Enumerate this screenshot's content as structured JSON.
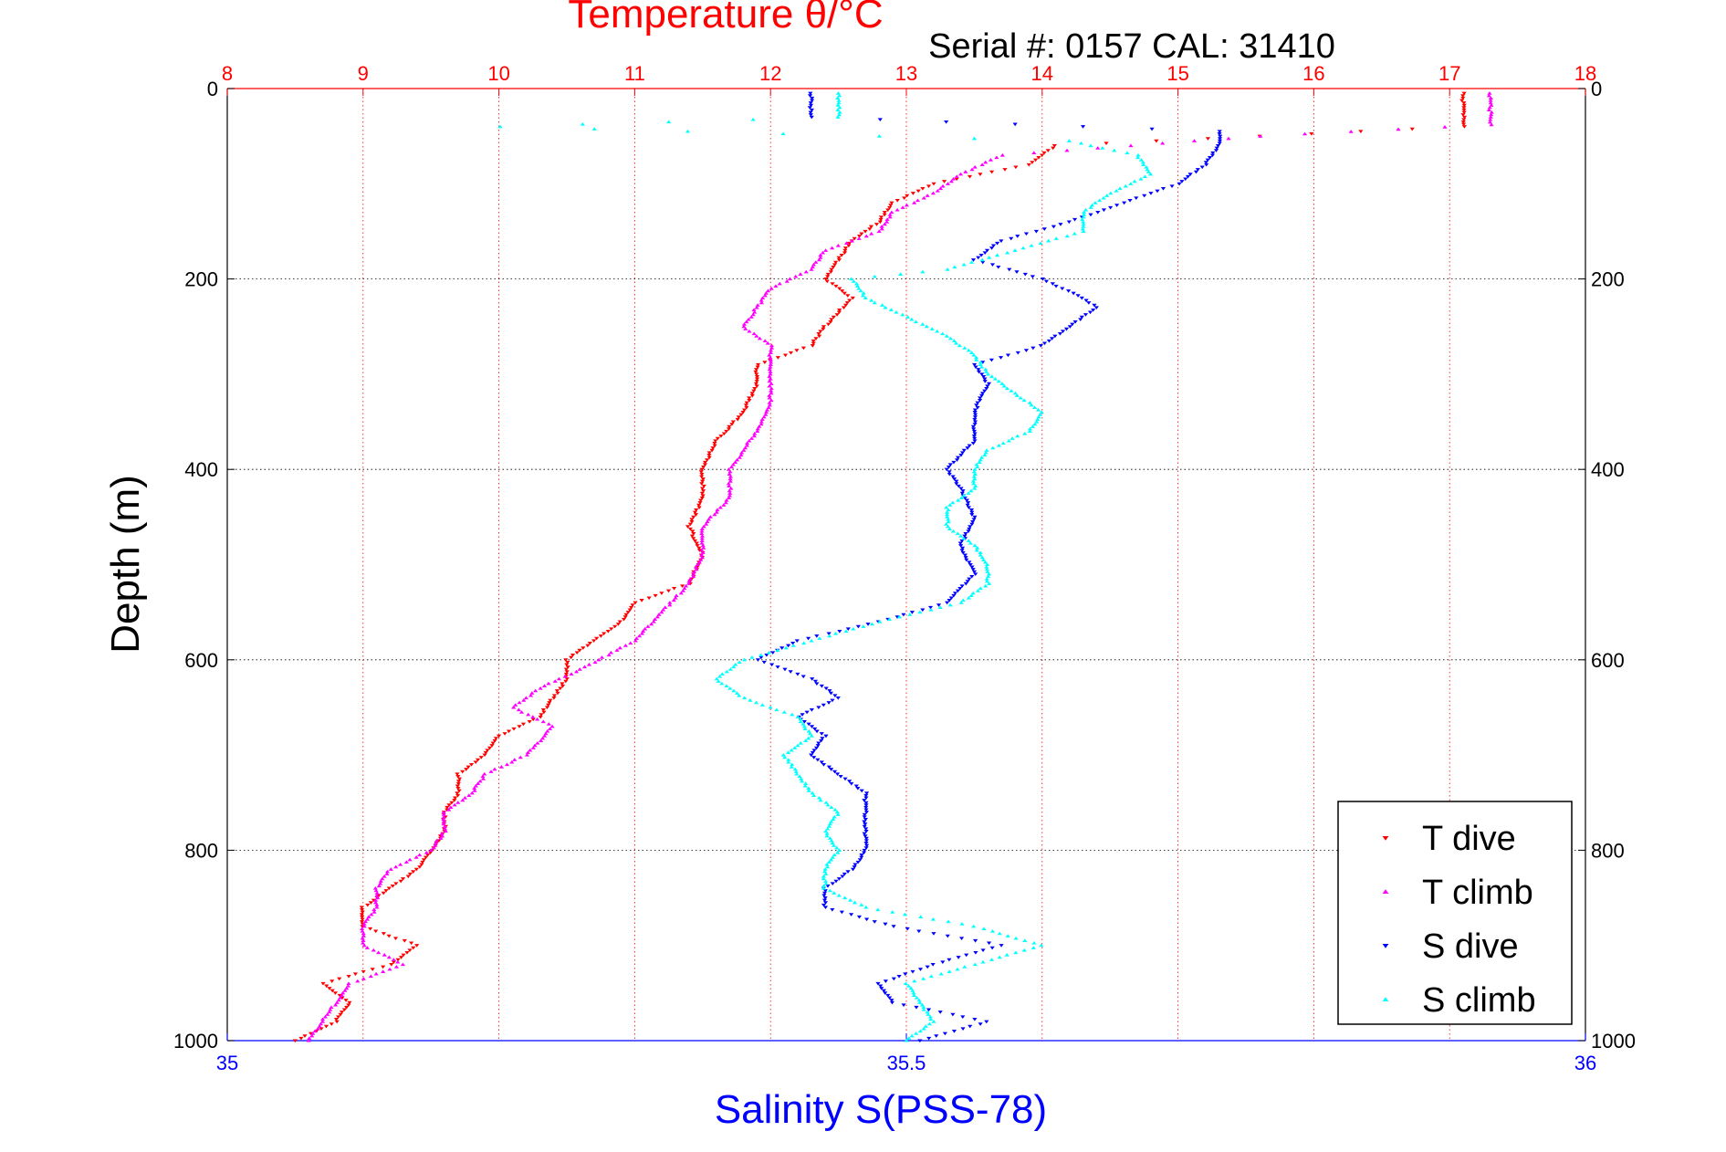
{
  "header": {
    "title": "Temperature θ/°C",
    "serial": "Serial #: 0157  CAL: 31410"
  },
  "colors": {
    "t_dive": "#ff0000",
    "t_climb": "#ff00ff",
    "s_dive": "#0000ff",
    "s_climb": "#00ffff",
    "temp_axis": "#ff0000",
    "sal_axis": "#0000ff"
  },
  "chart_data": {
    "type": "scatter",
    "title": "Temperature θ/°C",
    "xlabel": "Salinity S(PSS-78)",
    "ylabel": "Depth (m)",
    "grid": true,
    "legend_position": "bottom-right",
    "depth_axis": {
      "range": [
        0,
        1000
      ],
      "reversed": true,
      "ticks": [
        0,
        200,
        400,
        600,
        800,
        1000
      ]
    },
    "temperature_axis": {
      "range": [
        8,
        18
      ],
      "position": "top",
      "ticks": [
        8,
        9,
        10,
        11,
        12,
        13,
        14,
        15,
        16,
        17,
        18
      ]
    },
    "salinity_axis": {
      "range": [
        35,
        36
      ],
      "position": "bottom",
      "ticks": [
        "35",
        "35.5",
        "36"
      ],
      "tick_values": [
        35,
        35.5,
        36
      ]
    },
    "series": [
      {
        "name": "T dive",
        "axis": "temperature",
        "marker": "triangle-down",
        "color": "#ff0000",
        "depth": [
          5,
          10,
          20,
          30,
          40,
          60,
          80,
          100,
          120,
          140,
          160,
          180,
          200,
          220,
          250,
          270,
          290,
          310,
          340,
          370,
          400,
          430,
          460,
          490,
          520,
          540,
          560,
          580,
          600,
          620,
          640,
          660,
          680,
          700,
          720,
          740,
          760,
          780,
          800,
          820,
          840,
          860,
          880,
          900,
          920,
          940,
          960,
          980,
          1000
        ],
        "value": [
          17.1,
          17.1,
          17.1,
          17.1,
          17.1,
          14.1,
          13.9,
          13.2,
          12.9,
          12.8,
          12.6,
          12.5,
          12.4,
          12.6,
          12.4,
          12.3,
          11.9,
          11.9,
          11.8,
          11.6,
          11.5,
          11.5,
          11.4,
          11.5,
          11.4,
          11.0,
          10.9,
          10.7,
          10.5,
          10.5,
          10.4,
          10.3,
          10.0,
          9.9,
          9.7,
          9.7,
          9.6,
          9.6,
          9.5,
          9.4,
          9.2,
          9.0,
          9.0,
          9.4,
          9.2,
          8.7,
          8.9,
          8.8,
          8.5
        ]
      },
      {
        "name": "T climb",
        "axis": "temperature",
        "marker": "triangle-up",
        "color": "#ff00ff",
        "depth": [
          5,
          10,
          20,
          30,
          38,
          50,
          70,
          90,
          110,
          130,
          150,
          170,
          190,
          210,
          230,
          250,
          270,
          300,
          330,
          360,
          400,
          430,
          460,
          490,
          520,
          550,
          580,
          610,
          630,
          650,
          670,
          700,
          720,
          740,
          760,
          780,
          800,
          820,
          840,
          860,
          880,
          900,
          920,
          940,
          960,
          980,
          1000
        ],
        "value": [
          17.3,
          17.3,
          17.3,
          17.3,
          17.3,
          15.6,
          13.7,
          13.4,
          13.2,
          12.9,
          12.8,
          12.4,
          12.3,
          12.0,
          11.9,
          11.8,
          12.0,
          12.0,
          12.0,
          11.9,
          11.7,
          11.7,
          11.5,
          11.5,
          11.4,
          11.2,
          11.0,
          10.6,
          10.3,
          10.1,
          10.4,
          10.2,
          9.9,
          9.8,
          9.6,
          9.6,
          9.5,
          9.2,
          9.1,
          9.1,
          9.0,
          9.0,
          9.3,
          8.9,
          8.8,
          8.7,
          8.6
        ]
      },
      {
        "name": "S dive",
        "axis": "salinity",
        "marker": "triangle-down",
        "color": "#0000ff",
        "depth": [
          5,
          10,
          20,
          30,
          45,
          60,
          80,
          100,
          120,
          140,
          160,
          180,
          200,
          220,
          230,
          250,
          270,
          290,
          310,
          340,
          370,
          400,
          420,
          450,
          480,
          510,
          540,
          560,
          580,
          600,
          620,
          640,
          660,
          680,
          700,
          720,
          740,
          760,
          780,
          800,
          820,
          840,
          860,
          880,
          900,
          920,
          940,
          960,
          980,
          1000
        ],
        "value": [
          35.43,
          35.43,
          35.43,
          35.43,
          35.73,
          35.73,
          35.72,
          35.7,
          35.66,
          35.62,
          35.57,
          35.55,
          35.6,
          35.63,
          35.64,
          35.62,
          35.6,
          35.55,
          35.56,
          35.55,
          35.55,
          35.53,
          35.54,
          35.55,
          35.54,
          35.55,
          35.53,
          35.48,
          35.42,
          35.39,
          35.43,
          35.45,
          35.42,
          35.44,
          35.43,
          35.45,
          35.47,
          35.47,
          35.47,
          35.47,
          35.46,
          35.44,
          35.44,
          35.49,
          35.57,
          35.52,
          35.48,
          35.49,
          35.56,
          35.51
        ]
      },
      {
        "name": "S climb",
        "axis": "salinity",
        "marker": "triangle-up",
        "color": "#00ffff",
        "depth": [
          5,
          10,
          20,
          30,
          40,
          55,
          70,
          90,
          110,
          130,
          150,
          170,
          190,
          200,
          220,
          240,
          260,
          280,
          300,
          320,
          340,
          360,
          380,
          400,
          420,
          440,
          460,
          480,
          500,
          520,
          540,
          560,
          580,
          600,
          620,
          640,
          660,
          680,
          700,
          720,
          740,
          760,
          780,
          800,
          820,
          840,
          860,
          880,
          900,
          920,
          940,
          960,
          980,
          1000
        ],
        "value": [
          35.45,
          35.45,
          35.45,
          35.45,
          35.2,
          35.62,
          35.67,
          35.68,
          35.65,
          35.63,
          35.63,
          35.58,
          35.53,
          35.46,
          35.47,
          35.5,
          35.53,
          35.55,
          35.56,
          35.58,
          35.6,
          35.59,
          35.56,
          35.55,
          35.55,
          35.53,
          35.53,
          35.55,
          35.56,
          35.56,
          35.54,
          35.48,
          35.43,
          35.38,
          35.36,
          35.38,
          35.42,
          35.43,
          35.41,
          35.42,
          35.43,
          35.45,
          35.44,
          35.45,
          35.44,
          35.44,
          35.47,
          35.55,
          35.6,
          35.55,
          35.5,
          35.51,
          35.52,
          35.5
        ]
      }
    ]
  }
}
